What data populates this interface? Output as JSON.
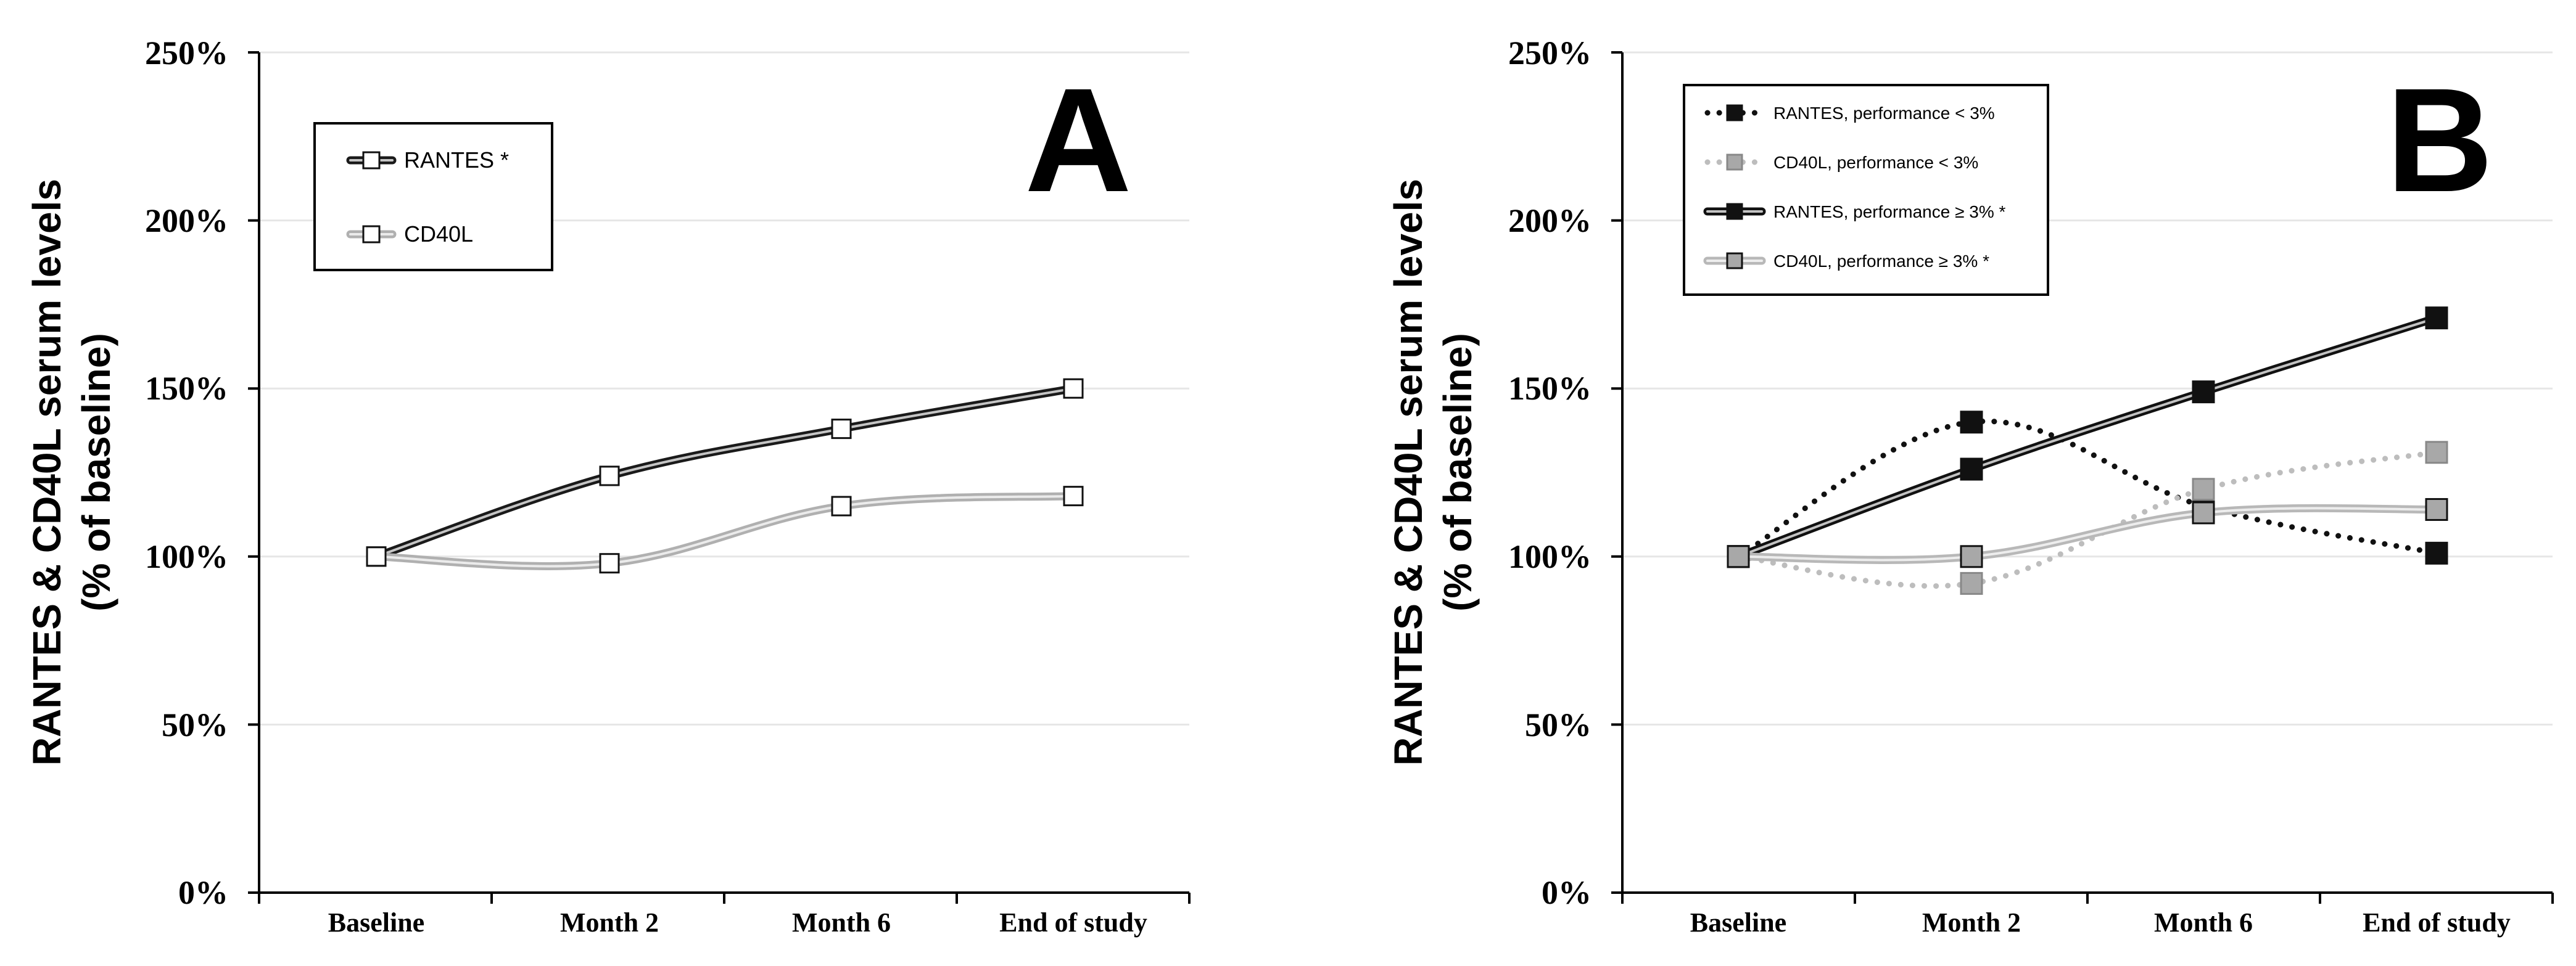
{
  "chart_data": [
    {
      "type": "line",
      "panel_label": "A",
      "categories": [
        "Baseline",
        "Month 2",
        "Month 6",
        "End of study"
      ],
      "ylabel_lines": [
        "RANTES & CD40L serum levels",
        "(% of baseline)"
      ],
      "ylim": [
        0,
        250
      ],
      "yticks": [
        0,
        50,
        100,
        150,
        200,
        250
      ],
      "ytick_labels": [
        "0%",
        "50%",
        "100%",
        "150%",
        "200%",
        "250%"
      ],
      "grid": true,
      "legend_position": "top-left",
      "series": [
        {
          "name": "RANTES *",
          "values": [
            100,
            124,
            138,
            150
          ],
          "line_color": "#1a1a1a",
          "marker_fill": "#ffffff",
          "style": "solid-double"
        },
        {
          "name": "CD40L",
          "values": [
            100,
            98,
            115,
            118
          ],
          "line_color": "#b0b0b0",
          "marker_fill": "#ffffff",
          "style": "solid-double"
        }
      ]
    },
    {
      "type": "line",
      "panel_label": "B",
      "categories": [
        "Baseline",
        "Month 2",
        "Month 6",
        "End of study"
      ],
      "ylabel_lines": [
        "RANTES & CD40L serum levels",
        "(% of baseline)"
      ],
      "ylim": [
        0,
        250
      ],
      "yticks": [
        0,
        50,
        100,
        150,
        200,
        250
      ],
      "ytick_labels": [
        "0%",
        "50%",
        "100%",
        "150%",
        "200%",
        "250%"
      ],
      "grid": true,
      "legend_position": "top-left",
      "series": [
        {
          "name": "RANTES, performance < 3%",
          "values": [
            100,
            140,
            115,
            101
          ],
          "line_color": "#111111",
          "marker_fill": "#111111",
          "style": "dotted"
        },
        {
          "name": "CD40L, performance < 3%",
          "values": [
            100,
            92,
            120,
            131
          ],
          "line_color": "#bdbdbd",
          "marker_fill": "#a8a8a8",
          "style": "dotted"
        },
        {
          "name": "RANTES, performance ≥ 3%  *",
          "values": [
            100,
            126,
            149,
            171
          ],
          "line_color": "#111111",
          "marker_fill": "#111111",
          "style": "solid-double"
        },
        {
          "name": "CD40L, performance ≥ 3%  *",
          "values": [
            100,
            100,
            113,
            114
          ],
          "line_color": "#b8b8b8",
          "marker_fill": "#a8a8a8",
          "style": "solid-double"
        }
      ]
    }
  ]
}
